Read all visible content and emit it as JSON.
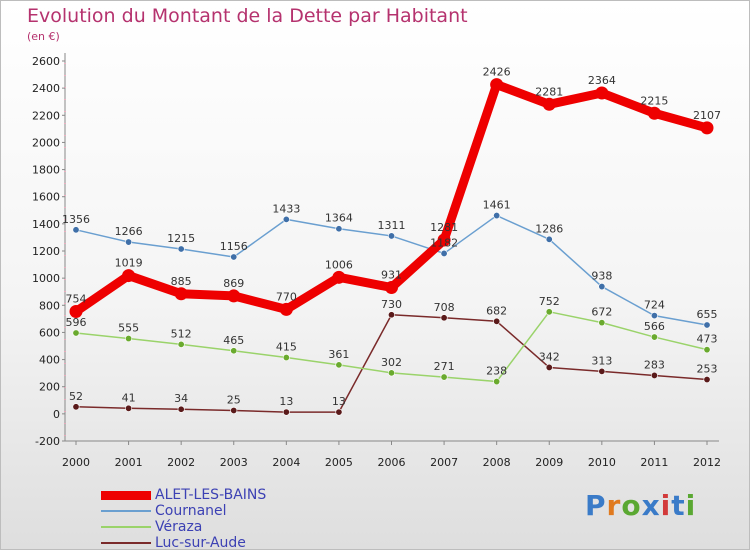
{
  "title": "Evolution du Montant de la Dette par Habitant",
  "subtitle": "(en €)",
  "logo": {
    "text": "Proxiti",
    "colors": [
      "#3a7bc8",
      "#e07a1f",
      "#5aa832",
      "#3a7bc8",
      "#d23a3a",
      "#3a7bc8",
      "#5aa832"
    ]
  },
  "chart_data": {
    "type": "line",
    "title": "Evolution du Montant de la Dette par Habitant",
    "ylabel": "(en €)",
    "xlabel": "",
    "x": [
      "2000",
      "2001",
      "2002",
      "2003",
      "2004",
      "2005",
      "2006",
      "2007",
      "2008",
      "2009",
      "2010",
      "2011",
      "2012"
    ],
    "ylim": [
      -200,
      2600
    ],
    "yticks": [
      -200,
      0,
      200,
      400,
      600,
      800,
      1000,
      1200,
      1400,
      1600,
      1800,
      2000,
      2200,
      2400,
      2600
    ],
    "grid": false,
    "legend_position": "bottom-left",
    "series": [
      {
        "name": "ALET-LES-BAINS",
        "color": "#ee0000",
        "values": [
          754,
          1019,
          885,
          869,
          770,
          1006,
          931,
          1281,
          2426,
          2281,
          2364,
          2215,
          2107
        ]
      },
      {
        "name": "Cournanel",
        "color": "#6a9fd0",
        "values": [
          1356,
          1266,
          1215,
          1156,
          1433,
          1364,
          1311,
          1182,
          1461,
          1286,
          938,
          724,
          655
        ]
      },
      {
        "name": "Véraza",
        "color": "#9ad36a",
        "values": [
          596,
          555,
          512,
          465,
          415,
          361,
          302,
          271,
          238,
          752,
          672,
          566,
          473
        ]
      },
      {
        "name": "Luc-sur-Aude",
        "color": "#7a2a2a",
        "values": [
          52,
          41,
          34,
          25,
          13,
          13,
          730,
          708,
          682,
          342,
          313,
          283,
          253
        ]
      }
    ]
  }
}
